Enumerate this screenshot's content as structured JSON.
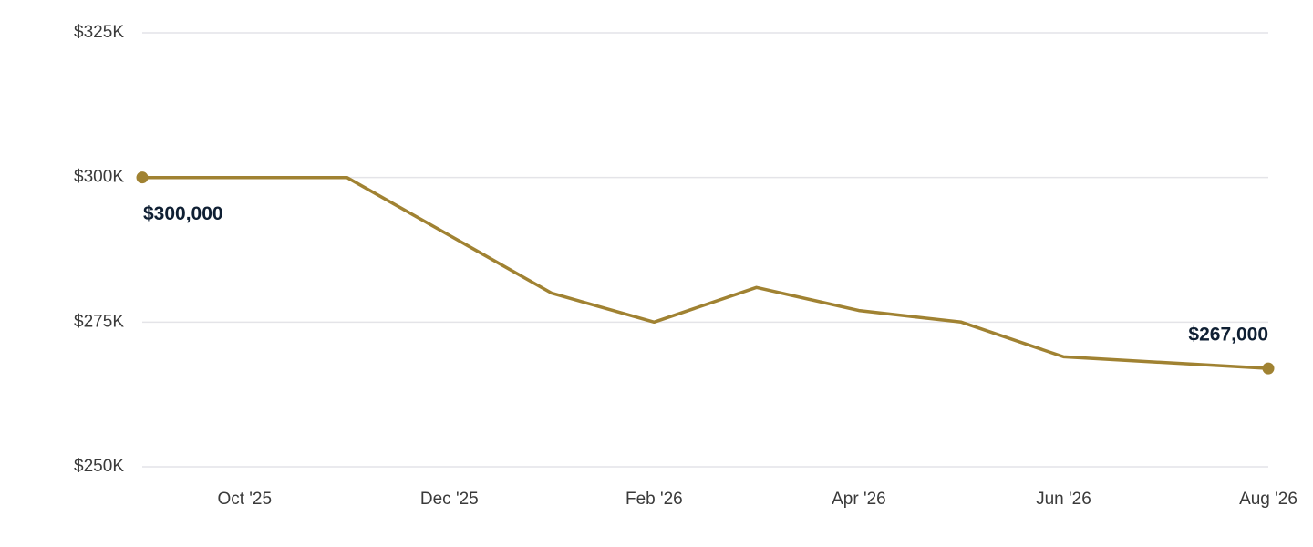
{
  "chart_data": {
    "type": "line",
    "categories": [
      null,
      "Oct '25",
      null,
      "Dec '25",
      null,
      "Feb '26",
      null,
      "Apr '26",
      null,
      "Jun '26",
      null,
      "Aug '26"
    ],
    "values": [
      300000,
      300000,
      300000,
      290000,
      280000,
      275000,
      281000,
      277000,
      275000,
      269000,
      268000,
      267000
    ],
    "value_labels": [
      "$300,000",
      null,
      null,
      null,
      null,
      null,
      null,
      null,
      null,
      null,
      null,
      "$267,000"
    ],
    "color": "#a08232",
    "ylim": [
      250000,
      325000
    ],
    "yticks": [
      {
        "value": 250000,
        "label": "$250K"
      },
      {
        "value": 275000,
        "label": "$275K"
      },
      {
        "value": 300000,
        "label": "$300K"
      },
      {
        "value": 325000,
        "label": "$325K"
      }
    ],
    "grid": true
  }
}
